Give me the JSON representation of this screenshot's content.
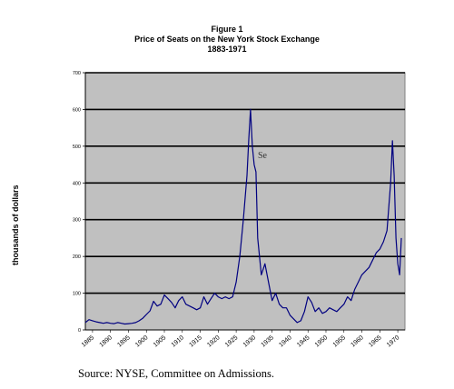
{
  "chart_data": {
    "type": "line",
    "figure_label": "Figure 1",
    "title": "Price of Seats on the New York Stock Exchange",
    "subtitle": "1883-1971",
    "ylabel": "thousands of dollars",
    "xlabel": "",
    "ylim": [
      0,
      700
    ],
    "yticks": [
      0,
      100,
      200,
      300,
      400,
      500,
      600,
      700
    ],
    "xlim": [
      1883,
      1972
    ],
    "xticks": [
      1885,
      1890,
      1895,
      1900,
      1905,
      1910,
      1915,
      1920,
      1925,
      1930,
      1935,
      1940,
      1945,
      1950,
      1955,
      1960,
      1965,
      1970
    ],
    "xtick_labels": [
      "1885",
      "1890",
      "1895",
      "1900",
      "1905",
      "1910",
      "1915",
      "1920",
      "1925",
      "1930",
      "1935",
      "1940",
      "1945",
      "1950",
      "1955",
      "1960",
      "1965",
      "1970"
    ],
    "grid": "horizontal",
    "background": "#C0C0C0",
    "line_color": "#000080",
    "series": [
      {
        "x": [
          1883,
          1884,
          1885,
          1886,
          1887,
          1888,
          1889,
          1890,
          1891,
          1892,
          1893,
          1894,
          1895,
          1896,
          1897,
          1898,
          1899,
          1900,
          1901,
          1902,
          1903,
          1904,
          1905,
          1906,
          1907,
          1908,
          1909,
          1910,
          1911,
          1912,
          1913,
          1914,
          1915,
          1916,
          1917,
          1918,
          1919,
          1920,
          1921,
          1922,
          1923,
          1924,
          1925,
          1926,
          1927,
          1928,
          1928.5,
          1929,
          1929.5,
          1930,
          1930.5,
          1931,
          1932,
          1933,
          1934,
          1935,
          1936,
          1937,
          1938,
          1939,
          1940,
          1941,
          1942,
          1943,
          1944,
          1945,
          1946,
          1947,
          1948,
          1949,
          1950,
          1951,
          1952,
          1953,
          1954,
          1955,
          1956,
          1957,
          1958,
          1959,
          1960,
          1961,
          1962,
          1963,
          1964,
          1965,
          1966,
          1967,
          1968,
          1968.5,
          1969,
          1969.5,
          1970,
          1970.5,
          1971
        ],
        "y": [
          20,
          28,
          25,
          22,
          20,
          18,
          20,
          18,
          17,
          20,
          18,
          16,
          17,
          18,
          20,
          25,
          32,
          42,
          52,
          78,
          65,
          70,
          95,
          85,
          75,
          60,
          80,
          90,
          70,
          65,
          60,
          55,
          60,
          90,
          70,
          85,
          100,
          90,
          85,
          90,
          85,
          90,
          130,
          200,
          300,
          420,
          520,
          600,
          500,
          450,
          430,
          250,
          150,
          180,
          130,
          80,
          100,
          70,
          60,
          60,
          40,
          30,
          20,
          25,
          50,
          90,
          75,
          50,
          60,
          45,
          50,
          60,
          55,
          50,
          60,
          70,
          90,
          80,
          110,
          130,
          150,
          160,
          170,
          190,
          210,
          220,
          240,
          270,
          400,
          515,
          420,
          250,
          180,
          150,
          250
        ]
      }
    ]
  },
  "partial_label": "Se",
  "source_note": "Source: NYSE, Committee on Admissions."
}
